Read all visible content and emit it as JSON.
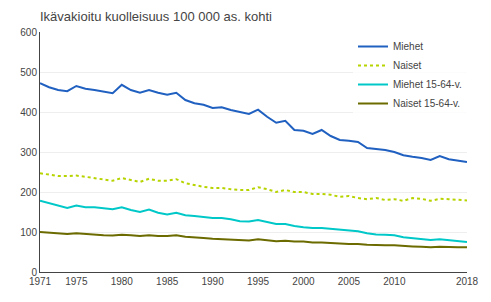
{
  "chart_data": {
    "type": "line",
    "title": "Ikävakioitu kuolleisuus 100 000 as. kohti",
    "x": [
      1971,
      1972,
      1973,
      1974,
      1975,
      1976,
      1977,
      1978,
      1979,
      1980,
      1981,
      1982,
      1983,
      1984,
      1985,
      1986,
      1987,
      1988,
      1989,
      1990,
      1991,
      1992,
      1993,
      1994,
      1995,
      1996,
      1997,
      1998,
      1999,
      2000,
      2001,
      2002,
      2003,
      2004,
      2005,
      2006,
      2007,
      2008,
      2009,
      2010,
      2011,
      2012,
      2013,
      2014,
      2015,
      2016,
      2017,
      2018
    ],
    "series": [
      {
        "name": "Miehet",
        "color": "#2060c0",
        "line_style": "solid",
        "values": [
          472,
          462,
          455,
          452,
          465,
          458,
          455,
          451,
          447,
          468,
          455,
          448,
          455,
          448,
          443,
          448,
          430,
          422,
          418,
          410,
          412,
          405,
          400,
          395,
          406,
          388,
          373,
          378,
          355,
          353,
          345,
          355,
          340,
          330,
          328,
          325,
          310,
          308,
          305,
          300,
          292,
          288,
          285,
          280,
          290,
          282,
          278,
          275
        ]
      },
      {
        "name": "Naiset",
        "color": "#b8d400",
        "line_style": "dotted",
        "values": [
          247,
          243,
          240,
          240,
          241,
          238,
          235,
          231,
          228,
          235,
          230,
          225,
          233,
          228,
          228,
          232,
          222,
          217,
          213,
          210,
          210,
          207,
          205,
          205,
          212,
          207,
          200,
          205,
          200,
          200,
          195,
          195,
          193,
          188,
          190,
          185,
          182,
          185,
          180,
          182,
          178,
          185,
          183,
          178,
          183,
          182,
          180,
          179
        ]
      },
      {
        "name": "Miehet 15-64-v.",
        "color": "#00c8c8",
        "line_style": "solid",
        "values": [
          178,
          172,
          165,
          160,
          166,
          162,
          162,
          160,
          157,
          162,
          155,
          150,
          156,
          148,
          144,
          148,
          142,
          140,
          138,
          135,
          135,
          132,
          127,
          126,
          130,
          125,
          120,
          120,
          115,
          112,
          110,
          110,
          108,
          105,
          103,
          102,
          97,
          94,
          93,
          92,
          87,
          85,
          83,
          80,
          82,
          80,
          77,
          75
        ]
      },
      {
        "name": "Naiset 15-64-v.",
        "color": "#6b6b00",
        "line_style": "solid",
        "values": [
          100,
          98,
          97,
          95,
          97,
          95,
          94,
          92,
          91,
          93,
          92,
          90,
          92,
          90,
          90,
          92,
          88,
          87,
          85,
          83,
          82,
          81,
          80,
          79,
          82,
          80,
          77,
          78,
          76,
          76,
          74,
          74,
          72,
          71,
          70,
          70,
          68,
          67,
          67,
          67,
          65,
          64,
          63,
          62,
          63,
          62,
          62,
          62
        ]
      }
    ],
    "xlim": [
      1971,
      2018
    ],
    "xticks": [
      1971,
      1975,
      1980,
      1985,
      1990,
      1995,
      2000,
      2005,
      2010,
      2018
    ],
    "ylim": [
      0,
      600
    ],
    "yticks": [
      0,
      100,
      200,
      300,
      400,
      500,
      600
    ],
    "grid": true,
    "legend": "upper right"
  }
}
